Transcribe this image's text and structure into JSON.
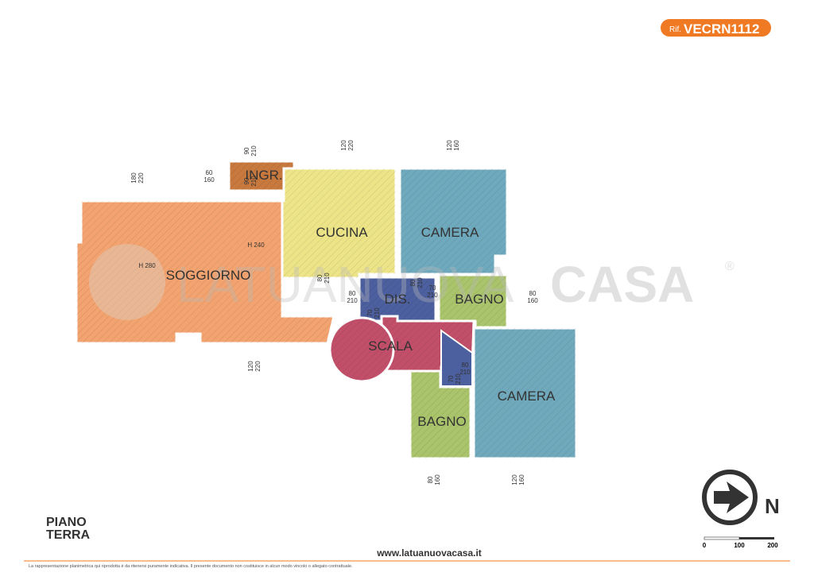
{
  "header": {
    "ref_prefix": "Rif.",
    "ref_code": "VECRN1112"
  },
  "watermark": {
    "text_light": "LATUANUOVA",
    "text_bold": "CASA",
    "mark": "®"
  },
  "rooms": [
    {
      "label": "SOGGIORNO"
    },
    {
      "label": "INGR."
    },
    {
      "label": "CUCINA"
    },
    {
      "label": "CAMERA"
    },
    {
      "label": "DIS."
    },
    {
      "label": "BAGNO"
    },
    {
      "label": "SCALA"
    },
    {
      "label": "CAMERA"
    },
    {
      "label": "BAGNO"
    }
  ],
  "heights": [
    {
      "label": "H 240"
    },
    {
      "label": "H 280"
    }
  ],
  "openings": [
    [
      "90",
      "210"
    ],
    [
      "60",
      "160"
    ],
    [
      "90",
      "210"
    ],
    [
      "120",
      "220"
    ],
    [
      "120",
      "160"
    ],
    [
      "180",
      "220"
    ],
    [
      "80",
      "210"
    ],
    [
      "80",
      "210"
    ],
    [
      "70",
      "210"
    ],
    [
      "80",
      "210"
    ],
    [
      "70",
      "210"
    ],
    [
      "80",
      "160"
    ],
    [
      "120",
      "220"
    ],
    [
      "80",
      "210"
    ],
    [
      "70",
      "210"
    ],
    [
      "80",
      "160"
    ],
    [
      "120",
      "160"
    ]
  ],
  "floor": {
    "line1": "PIANO",
    "line2": "TERRA"
  },
  "website": "www.latuanuovacasa.it",
  "disclaimer": "La rappresentazione planimetrica qui riprodotta è da ritenersi puramente indicativa. Il presente documento non costituisce in alcun modo vincolo o allegato contrattuale.",
  "compass": {
    "label": "N"
  },
  "scale": {
    "labels": [
      "0",
      "100",
      "200"
    ]
  }
}
